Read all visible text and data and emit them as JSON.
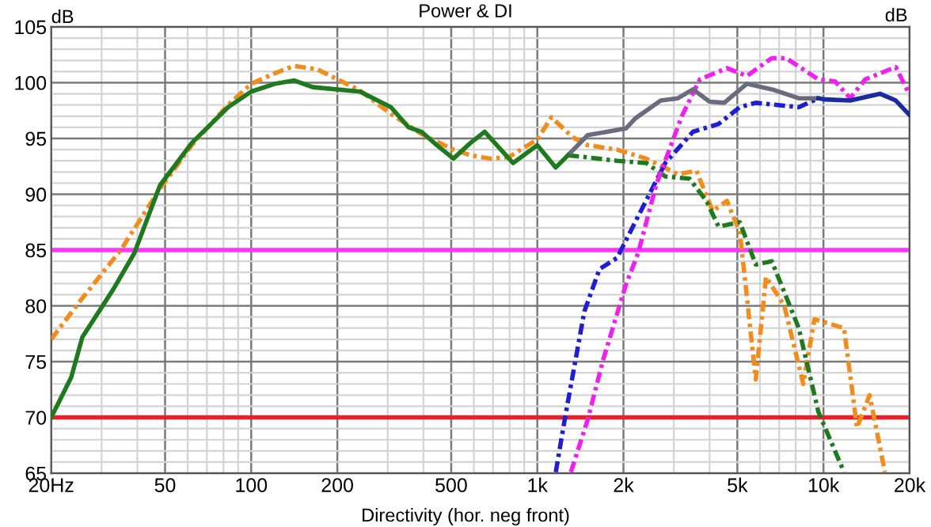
{
  "chart_data": {
    "type": "line",
    "title": "Power & DI",
    "ylabel": "dB",
    "annotations": [
      "dB",
      "Directivity (hor. neg front)"
    ],
    "log": "x",
    "grid": true,
    "legend": false,
    "marker": "none",
    "xlim": [
      20,
      20000
    ],
    "ylim": [
      65,
      105
    ],
    "xticks": [
      {
        "value": 20,
        "label": "20Hz"
      },
      50,
      100,
      200,
      500,
      {
        "value": 1000,
        "label": "1k"
      },
      {
        "value": 2000,
        "label": "2k"
      },
      {
        "value": 5000,
        "label": "5k"
      },
      {
        "value": 10000,
        "label": "10k"
      },
      {
        "value": 20000,
        "label": "20k"
      }
    ],
    "yticks": [
      65,
      70,
      75,
      80,
      85,
      90,
      95,
      100,
      105
    ],
    "ref_lines": [
      {
        "axis": "y",
        "value": 85,
        "color": "#ff33ff"
      },
      {
        "axis": "y",
        "value": 70,
        "color": "#e8202a"
      }
    ],
    "series": [
      {
        "color": "#f28c1c",
        "line_style": "dashdot",
        "x": [
          20,
          25,
          35,
          48,
          62,
          83,
          100,
          120,
          141,
          170,
          240,
          308,
          394,
          509,
          584,
          680,
          790,
          1000,
          1120,
          1330,
          1500,
          1900,
          2400,
          3100,
          3600,
          4100,
          4600,
          5100,
          5200,
          5800,
          6300,
          7300,
          8500,
          9300,
          11800,
          13100,
          14500,
          16400
        ],
        "values": [
          77,
          80.3,
          85,
          90.5,
          94.4,
          98,
          99.9,
          100.8,
          101.5,
          101.2,
          99.3,
          97.2,
          95.4,
          94,
          93.5,
          93.2,
          93.3,
          94.9,
          96.9,
          95.1,
          94.4,
          94,
          93.2,
          91.8,
          92.1,
          88.5,
          89.4,
          86.6,
          84.7,
          73.4,
          82.6,
          80,
          73,
          78.8,
          78,
          69.1,
          72,
          65.1
        ]
      },
      {
        "color": "#1f7a1f",
        "line_style": "dashdot",
        "x": [
          1280,
          1500,
          1900,
          2400,
          2800,
          3400,
          3900,
          4300,
          5100,
          5800,
          6600,
          8200,
          9600,
          11800
        ],
        "values": [
          93.5,
          93.3,
          93.0,
          92.8,
          91.6,
          91.4,
          89.4,
          87.1,
          87.5,
          83.7,
          84,
          78,
          70.5,
          65.1
        ]
      },
      {
        "color": "#1f1fd0",
        "line_style": "dashdot",
        "x": [
          1160,
          1250,
          1460,
          1650,
          1900,
          2300,
          2800,
          3500,
          4300,
          5100,
          5800,
          8200,
          9600
        ],
        "values": [
          65.1,
          70,
          79.5,
          83.3,
          84.3,
          88.5,
          92.8,
          95.6,
          96.3,
          97.8,
          98.2,
          97.8,
          98.6
        ]
      },
      {
        "color": "#ee22ee",
        "line_style": "dashdot",
        "x": [
          1310,
          1500,
          1700,
          2040,
          2250,
          2600,
          3200,
          3700,
          4600,
          5400,
          6600,
          7400,
          9600,
          11000,
          12400,
          14000,
          17900,
          20000
        ],
        "values": [
          65.1,
          69.8,
          75.2,
          81.9,
          84.7,
          90.8,
          97,
          100.3,
          101.3,
          100.6,
          102.2,
          102.2,
          100.3,
          100.1,
          98.6,
          100.3,
          101.4,
          98.9
        ]
      },
      {
        "color": "#6b6b80",
        "line_style": "solid",
        "x": [
          1280,
          1500,
          2040,
          2200,
          2700,
          3100,
          3500,
          4000,
          4500,
          5400,
          6600,
          8200,
          9600
        ],
        "values": [
          93.5,
          95.3,
          95.9,
          96.8,
          98.4,
          98.6,
          99.4,
          98.3,
          98.2,
          99.9,
          99.4,
          98.6,
          98.6
        ]
      },
      {
        "color": "#1a2aa0",
        "line_style": "solid",
        "x": [
          9600,
          10100,
          12400,
          15800,
          17900,
          20000
        ],
        "values": [
          98.6,
          98.5,
          98.4,
          99.0,
          98.4,
          97.1
        ]
      },
      {
        "color": "#1f7a1f",
        "line_style": "solid",
        "x": [
          20,
          23.5,
          25.7,
          33,
          39,
          48,
          62,
          83,
          100,
          121,
          141,
          164,
          240,
          308,
          355,
          394,
          445,
          509,
          584,
          655,
          823,
          1000,
          1160,
          1280
        ],
        "values": [
          70,
          73.6,
          77.2,
          81.5,
          84.7,
          90.8,
          94.6,
          97.8,
          99.2,
          99.9,
          100.2,
          99.6,
          99.2,
          97.8,
          96.0,
          95.6,
          94.4,
          93.2,
          94.6,
          95.6,
          92.8,
          94.4,
          92.4,
          93.5
        ]
      }
    ]
  }
}
